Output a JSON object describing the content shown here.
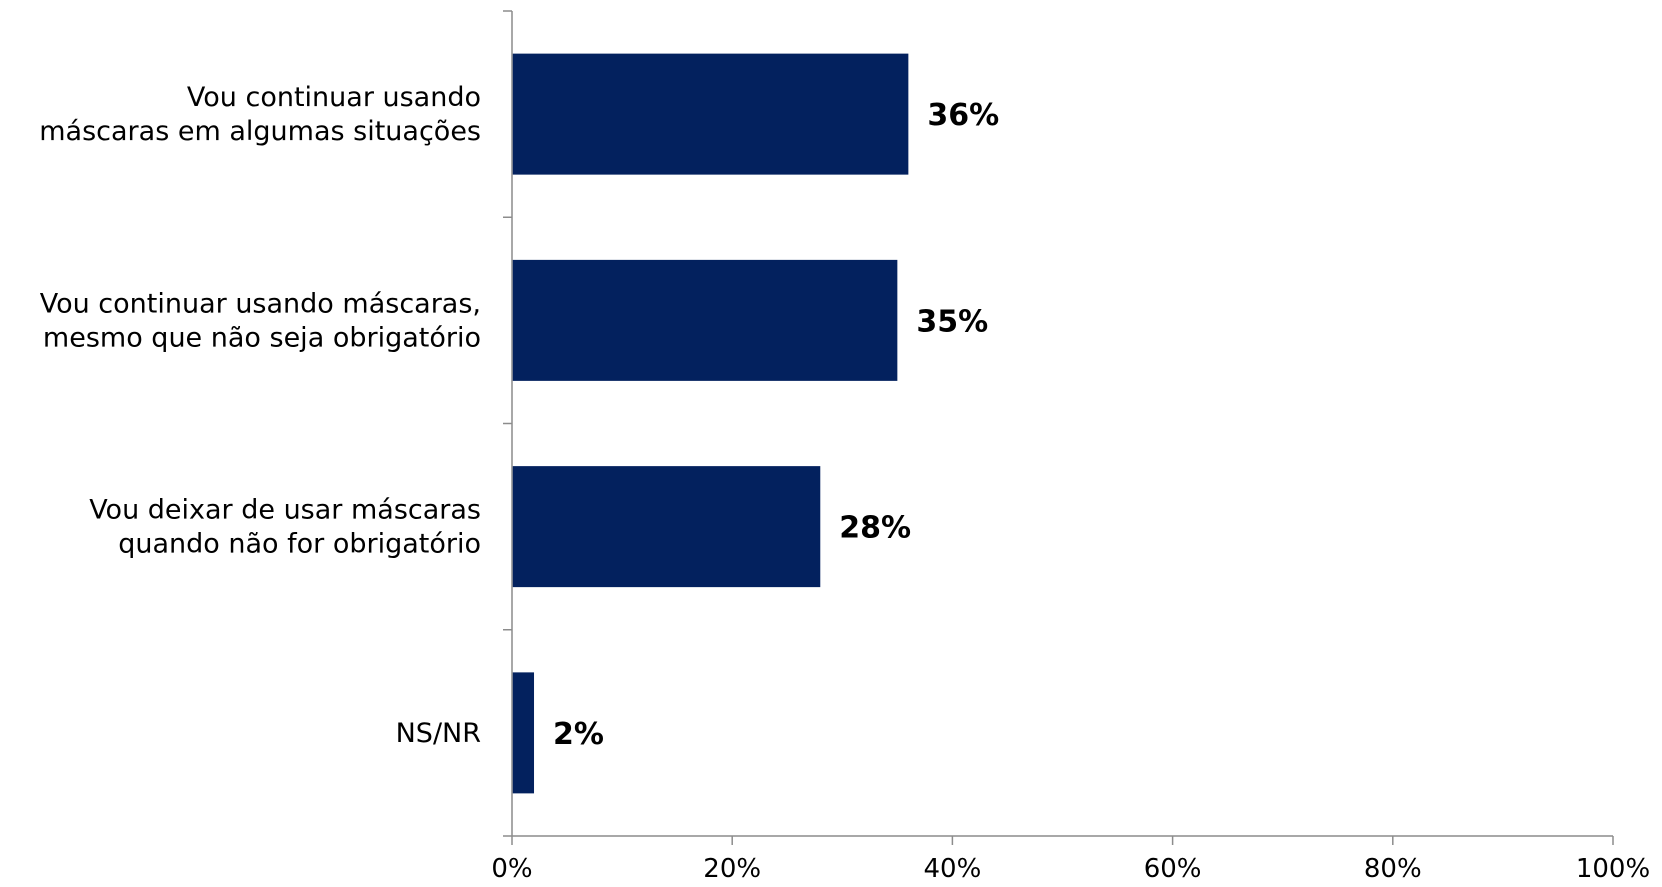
{
  "chart_data": {
    "type": "bar",
    "orientation": "horizontal",
    "categories": [
      [
        "Vou continuar usando",
        "máscaras em algumas situações"
      ],
      [
        "Vou continuar usando máscaras,",
        "mesmo que não seja obrigatório"
      ],
      [
        "Vou deixar de usar máscaras",
        "quando não for obrigatório"
      ],
      [
        "NS/NR"
      ]
    ],
    "values": [
      36,
      35,
      28,
      2
    ],
    "data_labels": [
      "36%",
      "35%",
      "28%",
      "2%"
    ],
    "xlim": [
      0,
      100
    ],
    "x_ticks": [
      0,
      20,
      40,
      60,
      80,
      100
    ],
    "x_tick_labels": [
      "0%",
      "20%",
      "40%",
      "60%",
      "80%",
      "100%"
    ],
    "title": "",
    "xlabel": "",
    "ylabel": "",
    "grid": false,
    "legend": "none",
    "colors": {
      "bar": "#03215e",
      "axis": "#8c8c8c",
      "text": "#000000"
    }
  }
}
